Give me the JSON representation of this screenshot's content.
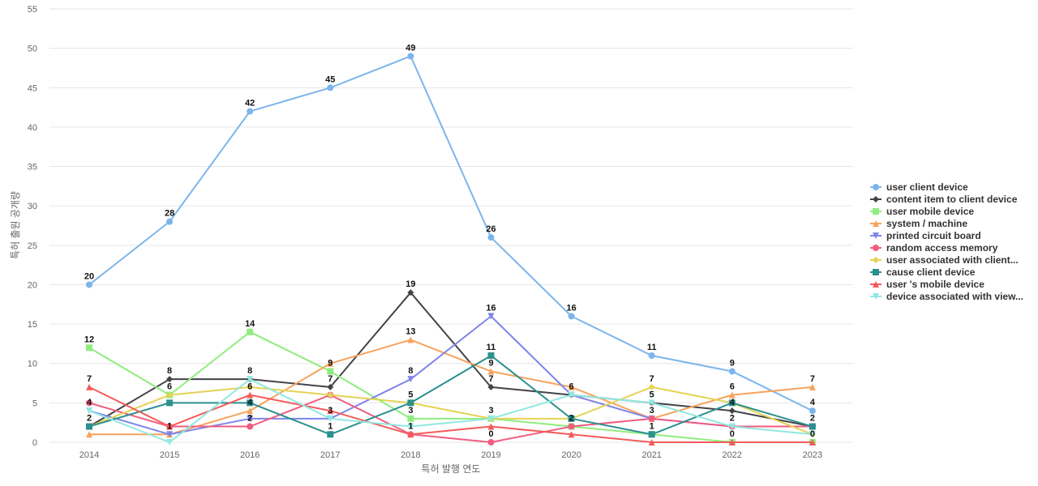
{
  "chart_data": {
    "type": "line",
    "xlabel": "특허 발행 연도",
    "ylabel": "특허 출원 공개량",
    "ylim": [
      0,
      55
    ],
    "yticks": [
      0,
      5,
      10,
      15,
      20,
      25,
      30,
      35,
      40,
      45,
      50,
      55
    ],
    "grid": true,
    "legend_position": "right",
    "x": [
      "2014",
      "2015",
      "2016",
      "2017",
      "2018",
      "2019",
      "2020",
      "2021",
      "2022",
      "2023"
    ],
    "series": [
      {
        "name": "user client device",
        "color": "#7cb5ec",
        "marker": "circle",
        "values": [
          20,
          28,
          42,
          45,
          49,
          26,
          16,
          11,
          9,
          4
        ],
        "labeled": true
      },
      {
        "name": "content item to client device",
        "color": "#434348",
        "marker": "diamond",
        "values": [
          2,
          8,
          8,
          7,
          19,
          7,
          6,
          5,
          4,
          2
        ],
        "labeled": true
      },
      {
        "name": "user mobile device",
        "color": "#90ed7d",
        "marker": "square",
        "values": [
          12,
          6,
          14,
          9,
          3,
          3,
          2,
          1,
          0,
          0
        ],
        "labeled": true
      },
      {
        "name": "system / machine",
        "color": "#f7a35c",
        "marker": "triangle",
        "values": [
          1,
          1,
          4,
          10,
          13,
          9,
          7,
          3,
          6,
          7
        ],
        "labeled": true
      },
      {
        "name": "printed circuit board",
        "color": "#8085e9",
        "marker": "triangle-down",
        "values": [
          4,
          1,
          3,
          3,
          8,
          16,
          6,
          3,
          2,
          2
        ],
        "labeled": true
      },
      {
        "name": "random access memory",
        "color": "#f15c80",
        "marker": "circle",
        "values": [
          5,
          2,
          2,
          6,
          1,
          0,
          2,
          3,
          2,
          2
        ],
        "labeled": true
      },
      {
        "name": "user associated with client...",
        "color": "#e4d354",
        "marker": "diamond",
        "values": [
          2,
          6,
          7,
          6,
          5,
          3,
          3,
          7,
          5,
          1
        ],
        "labeled": false
      },
      {
        "name": "cause client device",
        "color": "#2b908f",
        "marker": "square",
        "values": [
          2,
          5,
          5,
          1,
          5,
          11,
          3,
          1,
          5,
          2
        ],
        "labeled": false
      },
      {
        "name": "user 's mobile device",
        "color": "#f45b5b",
        "marker": "triangle",
        "values": [
          7,
          2,
          6,
          4,
          1,
          2,
          1,
          0,
          0,
          0
        ],
        "labeled": false
      },
      {
        "name": "device associated with view...",
        "color": "#91e8e1",
        "marker": "triangle-down",
        "values": [
          4,
          0,
          8,
          3,
          2,
          3,
          6,
          5,
          2,
          1
        ],
        "labeled": false
      }
    ],
    "data_labels": [
      {
        "x": "2014",
        "y": 20,
        "text": "20"
      },
      {
        "x": "2015",
        "y": 28,
        "text": "28"
      },
      {
        "x": "2016",
        "y": 42,
        "text": "42"
      },
      {
        "x": "2017",
        "y": 45,
        "text": "45"
      },
      {
        "x": "2018",
        "y": 49,
        "text": "49"
      },
      {
        "x": "2019",
        "y": 26,
        "text": "26"
      },
      {
        "x": "2020",
        "y": 16,
        "text": "16"
      },
      {
        "x": "2021",
        "y": 11,
        "text": "11"
      },
      {
        "x": "2022",
        "y": 9,
        "text": "9"
      },
      {
        "x": "2023",
        "y": 4,
        "text": "4"
      },
      {
        "x": "2014",
        "y": 12,
        "text": "12"
      },
      {
        "x": "2016",
        "y": 14,
        "text": "14"
      },
      {
        "x": "2018",
        "y": 19,
        "text": "19"
      },
      {
        "x": "2019",
        "y": 16,
        "text": "16"
      },
      {
        "x": "2018",
        "y": 13,
        "text": "13"
      },
      {
        "x": "2019",
        "y": 11,
        "text": "11"
      },
      {
        "x": "2014",
        "y": 7,
        "text": "7"
      },
      {
        "x": "2015",
        "y": 8,
        "text": "8"
      },
      {
        "x": "2016",
        "y": 8,
        "text": "8"
      },
      {
        "x": "2017",
        "y": 9,
        "text": "9"
      },
      {
        "x": "2018",
        "y": 8,
        "text": "8"
      },
      {
        "x": "2019",
        "y": 9,
        "text": "9"
      },
      {
        "x": "2017",
        "y": 7,
        "text": "7"
      },
      {
        "x": "2019",
        "y": 7,
        "text": "7"
      },
      {
        "x": "2020",
        "y": 6,
        "text": "6"
      },
      {
        "x": "2021",
        "y": 7,
        "text": "7"
      },
      {
        "x": "2022",
        "y": 6,
        "text": "6"
      },
      {
        "x": "2023",
        "y": 7,
        "text": "7"
      },
      {
        "x": "2015",
        "y": 6,
        "text": "6"
      },
      {
        "x": "2016",
        "y": 6,
        "text": "6"
      },
      {
        "x": "2021",
        "y": 5,
        "text": "5"
      },
      {
        "x": "2018",
        "y": 5,
        "text": "5"
      },
      {
        "x": "2014",
        "y": 4,
        "text": "4"
      },
      {
        "x": "2016",
        "y": 4,
        "text": "4"
      },
      {
        "x": "2022",
        "y": 4,
        "text": "4"
      },
      {
        "x": "2017",
        "y": 3,
        "text": "3"
      },
      {
        "x": "2018",
        "y": 3,
        "text": "3"
      },
      {
        "x": "2019",
        "y": 3,
        "text": "3"
      },
      {
        "x": "2021",
        "y": 3,
        "text": "3"
      },
      {
        "x": "2014",
        "y": 2,
        "text": "2"
      },
      {
        "x": "2016",
        "y": 2,
        "text": "2"
      },
      {
        "x": "2020",
        "y": 2,
        "text": "2"
      },
      {
        "x": "2022",
        "y": 2,
        "text": "2"
      },
      {
        "x": "2023",
        "y": 2,
        "text": "2"
      },
      {
        "x": "2015",
        "y": 1,
        "text": "1"
      },
      {
        "x": "2017",
        "y": 1,
        "text": "1"
      },
      {
        "x": "2018",
        "y": 1,
        "text": "1"
      },
      {
        "x": "2021",
        "y": 1,
        "text": "1"
      },
      {
        "x": "2019",
        "y": 0,
        "text": "0"
      },
      {
        "x": "2022",
        "y": 0,
        "text": "0"
      },
      {
        "x": "2023",
        "y": 0,
        "text": "0"
      }
    ]
  }
}
